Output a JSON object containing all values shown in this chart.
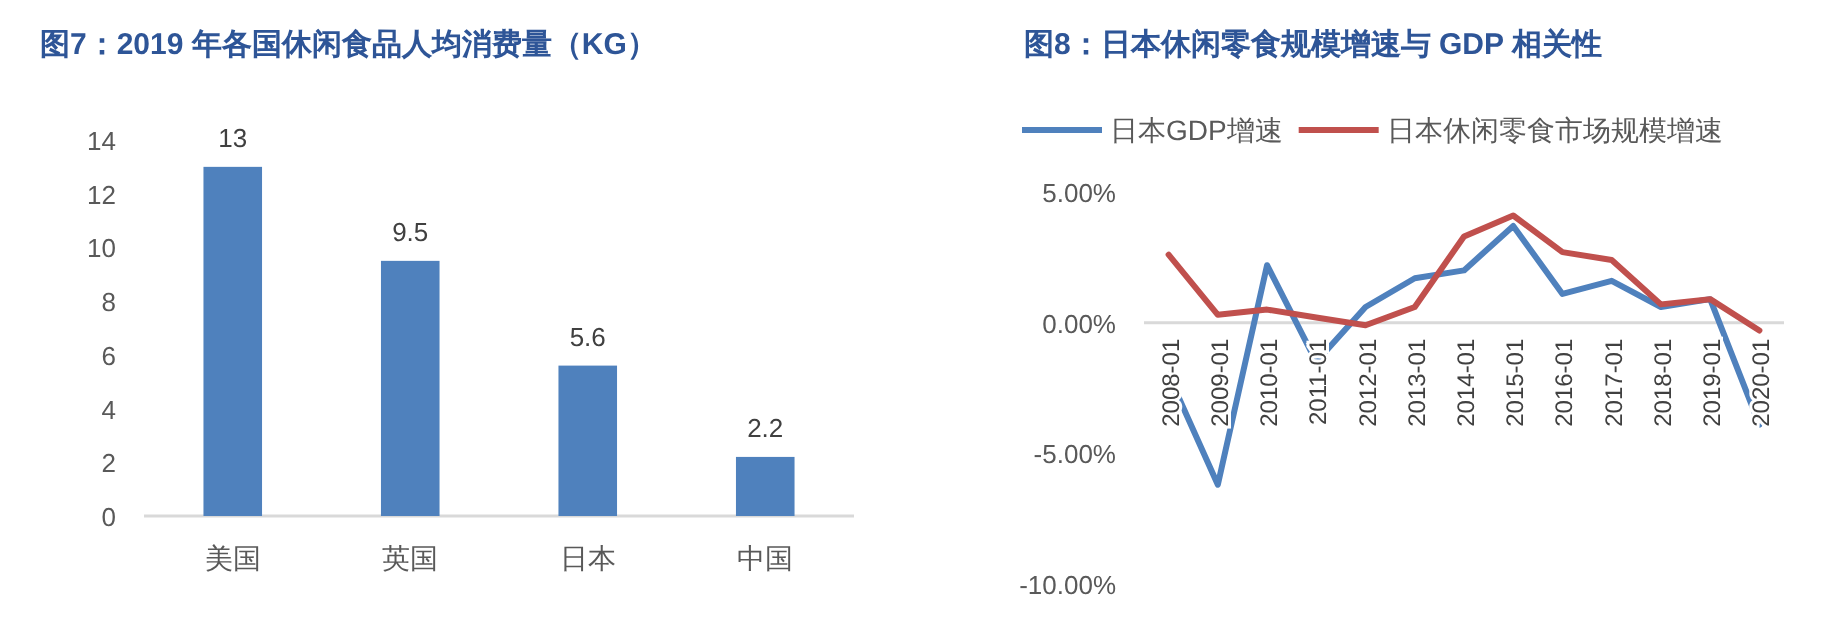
{
  "chart_data": [
    {
      "type": "bar",
      "title": "图7：2019 年各国休闲食品人均消费量（KG）",
      "categories": [
        "美国",
        "英国",
        "日本",
        "中国"
      ],
      "values": [
        13,
        9.5,
        5.6,
        2.2
      ],
      "color": "#4f81bd",
      "ylim": [
        0,
        14
      ],
      "yticks": [
        0,
        2,
        4,
        6,
        8,
        10,
        12,
        14
      ],
      "data_labels": true,
      "grid": false
    },
    {
      "type": "line",
      "title": "图8：日本休闲零食规模增速与 GDP 相关性",
      "categories": [
        "2008-01",
        "2009-01",
        "2010-01",
        "2011-01",
        "2012-01",
        "2013-01",
        "2014-01",
        "2015-01",
        "2016-01",
        "2017-01",
        "2018-01",
        "2019-01",
        "2020-01"
      ],
      "series": [
        {
          "name": "日本GDP增速",
          "color": "#4f81bd",
          "values": [
            -2.0,
            -6.2,
            2.2,
            -1.5,
            0.6,
            1.7,
            2.0,
            3.7,
            1.1,
            1.6,
            0.6,
            0.9,
            -3.9
          ]
        },
        {
          "name": "日本休闲零食市场规模增速",
          "color": "#c0504d",
          "values": [
            2.6,
            0.3,
            0.5,
            0.2,
            -0.1,
            0.6,
            3.3,
            4.1,
            2.7,
            2.4,
            0.7,
            0.9,
            -0.3
          ]
        }
      ],
      "ylim": [
        -10,
        5
      ],
      "yticks": [
        {
          "value": 5,
          "label": "5.00%"
        },
        {
          "value": 0,
          "label": "0.00%"
        },
        {
          "value": -5,
          "label": "-5.00%"
        },
        {
          "value": -10,
          "label": "-10.00%"
        }
      ],
      "grid": false,
      "legend": "top",
      "marker": "none",
      "line_style": "solid"
    }
  ]
}
